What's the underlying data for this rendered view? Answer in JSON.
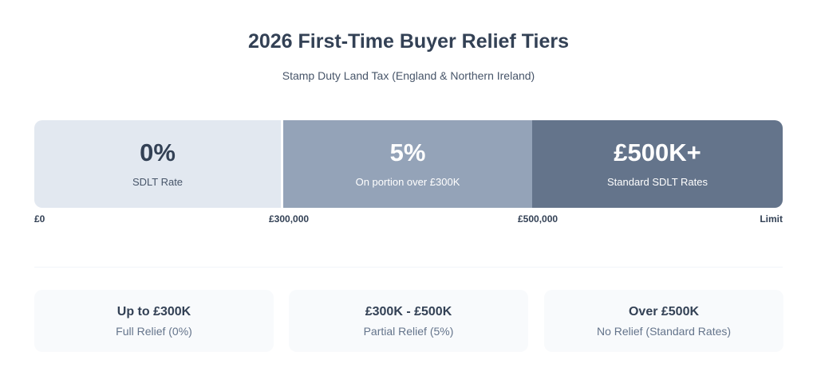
{
  "header": {
    "title": "2026 First-Time Buyer Relief Tiers",
    "subtitle": "Stamp Duty Land Tax (England & Northern Ireland)"
  },
  "tiers": [
    {
      "value": "0%",
      "label": "SDLT Rate",
      "bg": "#e2e8f0",
      "fg": "#334155",
      "label_color": "#475569"
    },
    {
      "value": "5%",
      "label": "On portion over £300K",
      "bg": "#94a3b8",
      "fg": "#ffffff",
      "label_color": "#ffffff"
    },
    {
      "value": "£500K+",
      "label": "Standard SDLT Rates",
      "bg": "#64748b",
      "fg": "#ffffff",
      "label_color": "#ffffff"
    }
  ],
  "ticks": [
    "£0",
    "£300,000",
    "£500,000",
    "Limit"
  ],
  "cards": [
    {
      "heading": "Up to £300K",
      "desc": "Full Relief (0%)"
    },
    {
      "heading": "£300K - £500K",
      "desc": "Partial Relief (5%)"
    },
    {
      "heading": "Over £500K",
      "desc": "No Relief (Standard Rates)"
    }
  ]
}
